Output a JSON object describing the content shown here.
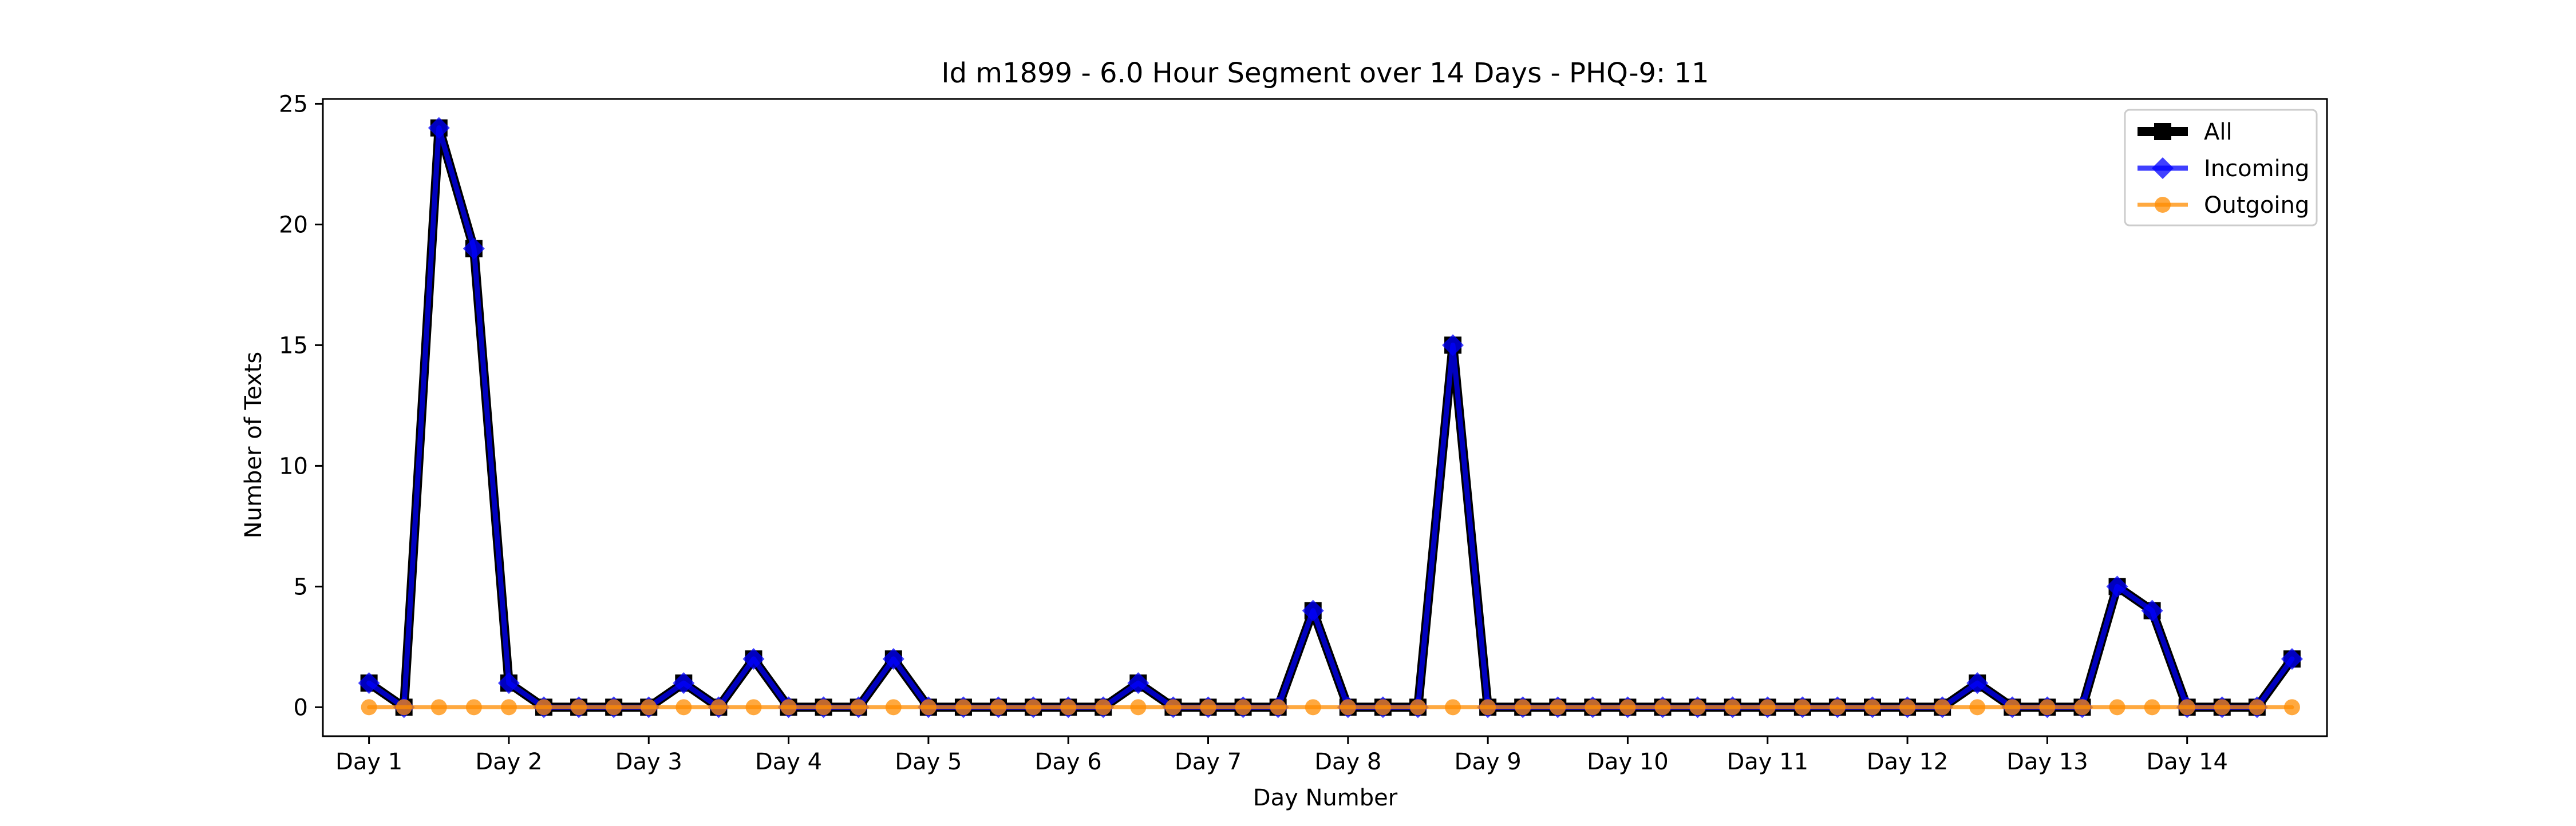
{
  "chart_data": {
    "type": "line",
    "title": "Id m1899 - 6.0 Hour Segment over 14 Days - PHQ-9: 11",
    "xlabel": "Day Number",
    "ylabel": "Number of Texts",
    "x_tick_labels": [
      "Day 1",
      "Day 2",
      "Day 3",
      "Day 4",
      "Day 5",
      "Day 6",
      "Day 7",
      "Day 8",
      "Day 9",
      "Day 10",
      "Day 11",
      "Day 12",
      "Day 13",
      "Day 14"
    ],
    "y_ticks": [
      0,
      5,
      10,
      15,
      20,
      25
    ],
    "y_tick_labels": [
      "0",
      "5",
      "10",
      "15",
      "20",
      "25"
    ],
    "xlim": [
      0.67,
      15.0
    ],
    "ylim": [
      -1.2,
      25.2
    ],
    "grid": false,
    "legend_position": "top-right",
    "x": [
      1,
      1.25,
      1.5,
      1.75,
      2,
      2.25,
      2.5,
      2.75,
      3,
      3.25,
      3.5,
      3.75,
      4,
      4.25,
      4.5,
      4.75,
      5,
      5.25,
      5.5,
      5.75,
      6,
      6.25,
      6.5,
      6.75,
      7,
      7.25,
      7.5,
      7.75,
      8,
      8.25,
      8.5,
      8.75,
      9,
      9.25,
      9.5,
      9.75,
      10,
      10.25,
      10.5,
      10.75,
      11,
      11.25,
      11.5,
      11.75,
      12,
      12.25,
      12.5,
      12.75,
      13,
      13.25,
      13.5,
      13.75,
      14,
      14.25,
      14.5,
      14.75
    ],
    "series": [
      {
        "name": "All",
        "color": "#000000",
        "marker": "square",
        "values": [
          1,
          0,
          24,
          19,
          1,
          0,
          0,
          0,
          0,
          1,
          0,
          2,
          0,
          0,
          0,
          2,
          0,
          0,
          0,
          0,
          0,
          0,
          1,
          0,
          0,
          0,
          0,
          4,
          0,
          0,
          0,
          15,
          0,
          0,
          0,
          0,
          0,
          0,
          0,
          0,
          0,
          0,
          0,
          0,
          0,
          0,
          1,
          0,
          0,
          0,
          5,
          4,
          0,
          0,
          0,
          2
        ]
      },
      {
        "name": "Incoming",
        "color": "#0000ff",
        "marker": "diamond",
        "values": [
          1,
          0,
          24,
          19,
          1,
          0,
          0,
          0,
          0,
          1,
          0,
          2,
          0,
          0,
          0,
          2,
          0,
          0,
          0,
          0,
          0,
          0,
          1,
          0,
          0,
          0,
          0,
          4,
          0,
          0,
          0,
          15,
          0,
          0,
          0,
          0,
          0,
          0,
          0,
          0,
          0,
          0,
          0,
          0,
          0,
          0,
          1,
          0,
          0,
          0,
          5,
          4,
          0,
          0,
          0,
          2
        ]
      },
      {
        "name": "Outgoing",
        "color": "#ff8c00",
        "marker": "circle",
        "values": [
          0,
          0,
          0,
          0,
          0,
          0,
          0,
          0,
          0,
          0,
          0,
          0,
          0,
          0,
          0,
          0,
          0,
          0,
          0,
          0,
          0,
          0,
          0,
          0,
          0,
          0,
          0,
          0,
          0,
          0,
          0,
          0,
          0,
          0,
          0,
          0,
          0,
          0,
          0,
          0,
          0,
          0,
          0,
          0,
          0,
          0,
          0,
          0,
          0,
          0,
          0,
          0,
          0,
          0,
          0,
          0
        ]
      }
    ]
  }
}
